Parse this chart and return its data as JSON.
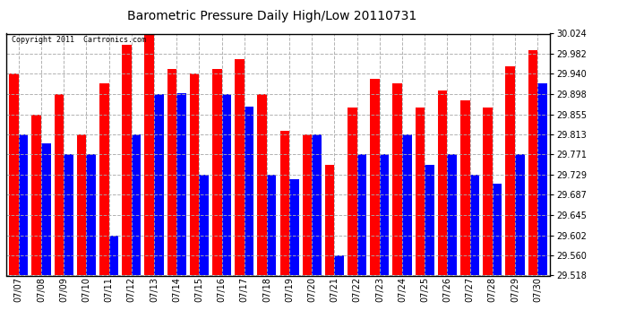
{
  "title": "Barometric Pressure Daily High/Low 20110731",
  "copyright": "Copyright 2011  Cartronics.com",
  "dates": [
    "07/07",
    "07/08",
    "07/09",
    "07/10",
    "07/11",
    "07/12",
    "07/13",
    "07/14",
    "07/15",
    "07/16",
    "07/17",
    "07/18",
    "07/19",
    "07/20",
    "07/21",
    "07/22",
    "07/23",
    "07/24",
    "07/25",
    "07/26",
    "07/27",
    "07/28",
    "07/29",
    "07/30"
  ],
  "highs": [
    29.94,
    29.855,
    29.898,
    29.813,
    29.92,
    30.0,
    30.024,
    29.95,
    29.94,
    29.95,
    29.97,
    29.898,
    29.82,
    29.813,
    29.75,
    29.87,
    29.93,
    29.92,
    29.87,
    29.905,
    29.885,
    29.87,
    29.955,
    29.99
  ],
  "lows": [
    29.813,
    29.795,
    29.771,
    29.771,
    29.602,
    29.813,
    29.898,
    29.9,
    29.729,
    29.898,
    29.871,
    29.729,
    29.72,
    29.813,
    29.56,
    29.771,
    29.771,
    29.813,
    29.75,
    29.771,
    29.729,
    29.71,
    29.771,
    29.92
  ],
  "ylim_min": 29.518,
  "ylim_max": 30.024,
  "yticks": [
    29.518,
    29.56,
    29.602,
    29.645,
    29.687,
    29.729,
    29.771,
    29.813,
    29.855,
    29.898,
    29.94,
    29.982,
    30.024
  ],
  "high_color": "#FF0000",
  "low_color": "#0000FF",
  "bg_color": "#FFFFFF",
  "grid_color": "#AAAAAA",
  "title_fontsize": 10,
  "tick_fontsize": 7
}
